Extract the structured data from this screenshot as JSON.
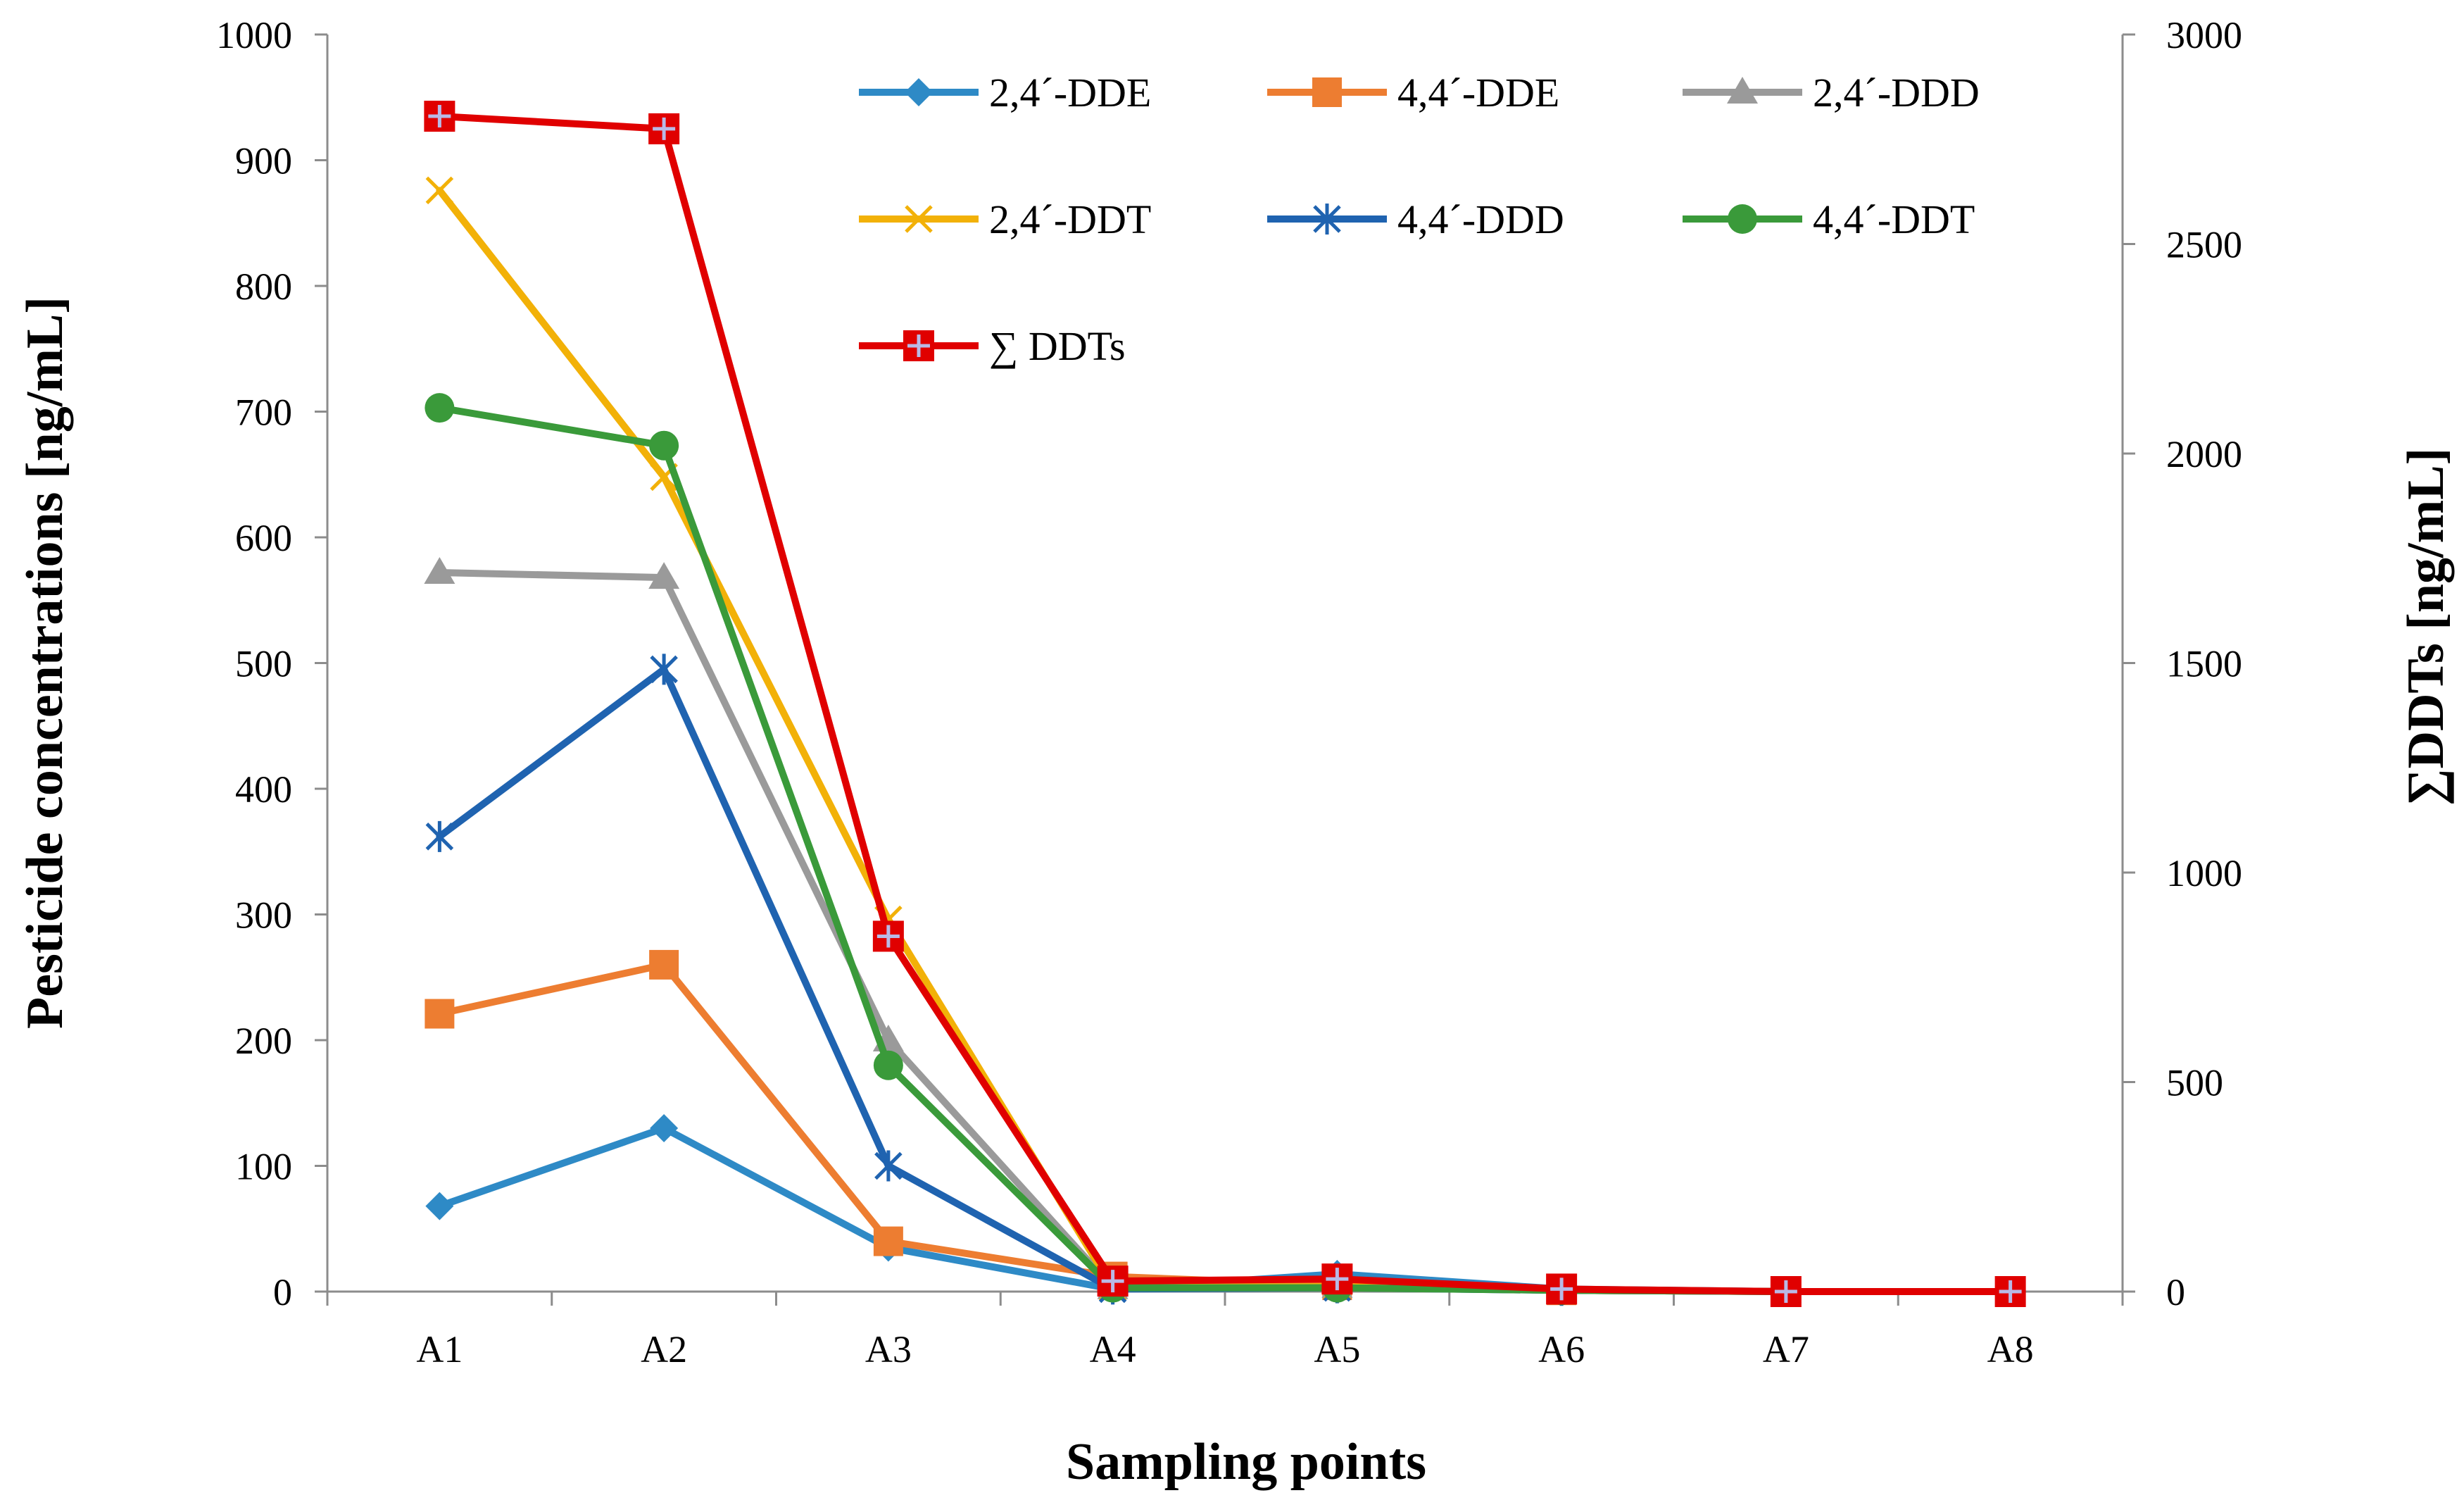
{
  "chart_data": {
    "type": "line",
    "title": "",
    "xlabel": "Sampling points",
    "ylabel": "Pesticide concentrations [ng/mL]",
    "y2label": "∑DDTs [ng/mL]",
    "categories": [
      "A1",
      "A2",
      "A3",
      "A4",
      "A5",
      "A6",
      "A7",
      "A8"
    ],
    "ylim": [
      0,
      1000
    ],
    "yticks": [
      0,
      100,
      200,
      300,
      400,
      500,
      600,
      700,
      800,
      900,
      1000
    ],
    "y2lim": [
      0,
      3000
    ],
    "y2ticks": [
      0,
      500,
      1000,
      1500,
      2000,
      2500,
      3000
    ],
    "grid": false,
    "legend_position": "top-right",
    "series": [
      {
        "name": "2,4´-DDE",
        "axis": "left",
        "color": "#2e8ac6",
        "marker": "diamond",
        "values": [
          68,
          130,
          35,
          2,
          14,
          2,
          0,
          0
        ]
      },
      {
        "name": "4,4´-DDE",
        "axis": "left",
        "color": "#ed7d31",
        "marker": "square",
        "values": [
          221,
          260,
          40,
          12,
          5,
          1,
          0,
          0
        ]
      },
      {
        "name": "2,4´-DDD",
        "axis": "left",
        "color": "#9a9a9a",
        "marker": "triangle",
        "values": [
          572,
          568,
          200,
          3,
          4,
          1,
          0,
          0
        ]
      },
      {
        "name": "2,4´-DDT",
        "axis": "left",
        "color": "#f2b108",
        "marker": "x",
        "values": [
          876,
          648,
          296,
          3,
          4,
          1,
          0,
          0
        ]
      },
      {
        "name": "4,4´-DDD",
        "axis": "left",
        "color": "#1f63b0",
        "marker": "star",
        "values": [
          362,
          495,
          100,
          2,
          3,
          1,
          0,
          0
        ]
      },
      {
        "name": "4,4´-DDT",
        "axis": "left",
        "color": "#3a9a3a",
        "marker": "circle",
        "values": [
          703,
          673,
          180,
          3,
          3,
          1,
          0,
          0
        ]
      },
      {
        "name": "∑ DDTs",
        "axis": "right",
        "color": "#e00000",
        "marker": "plus-square",
        "values": [
          2805,
          2775,
          848,
          25,
          30,
          6,
          0,
          0
        ]
      }
    ]
  }
}
